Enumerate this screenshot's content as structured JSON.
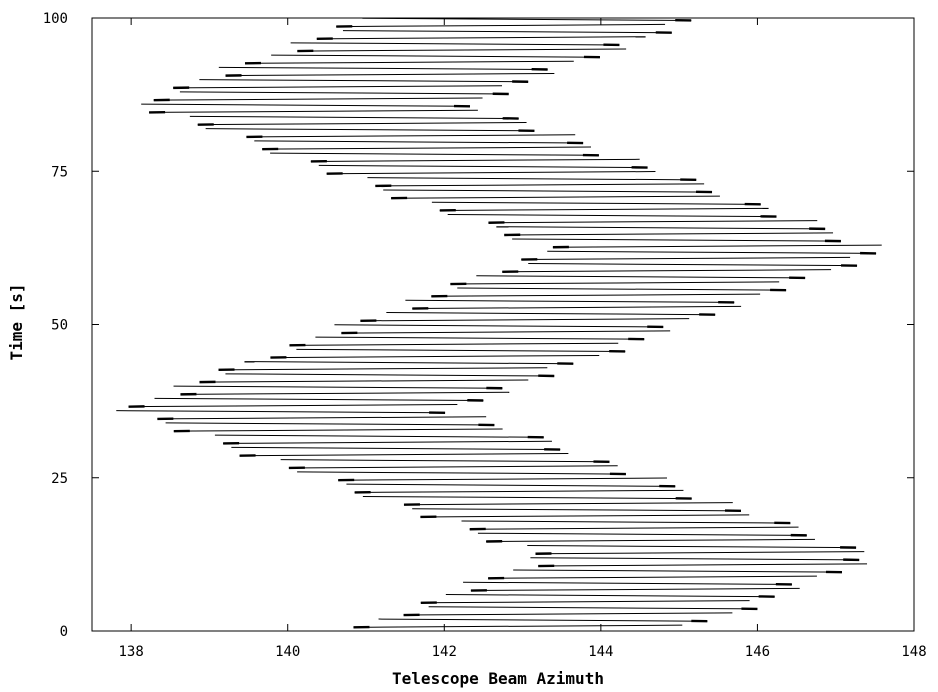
{
  "chart_data": {
    "type": "line",
    "title": "",
    "xlabel": "Telescope Beam Azimuth",
    "ylabel": "Time [s]",
    "xlim": [
      137.5,
      148
    ],
    "ylim": [
      0,
      100
    ],
    "xticks": [
      138,
      140,
      142,
      144,
      146,
      148
    ],
    "yticks": [
      0,
      25,
      50,
      75,
      100
    ],
    "grid": false,
    "legend": "none",
    "line_color": "#000000",
    "description_of_marks": "Each horizontal stroke is one telescope scan across azimuth; the scan center oscillates in a zig-zag pattern over time.",
    "scan_center_keypoints": {
      "time": [
        0,
        12,
        36,
        62,
        86,
        100
      ],
      "center_azimuth": [
        143.0,
        145.4,
        140.0,
        145.5,
        140.2,
        143.2
      ]
    },
    "scan_half_width": 2.1,
    "scan_spacing": 1.0
  }
}
